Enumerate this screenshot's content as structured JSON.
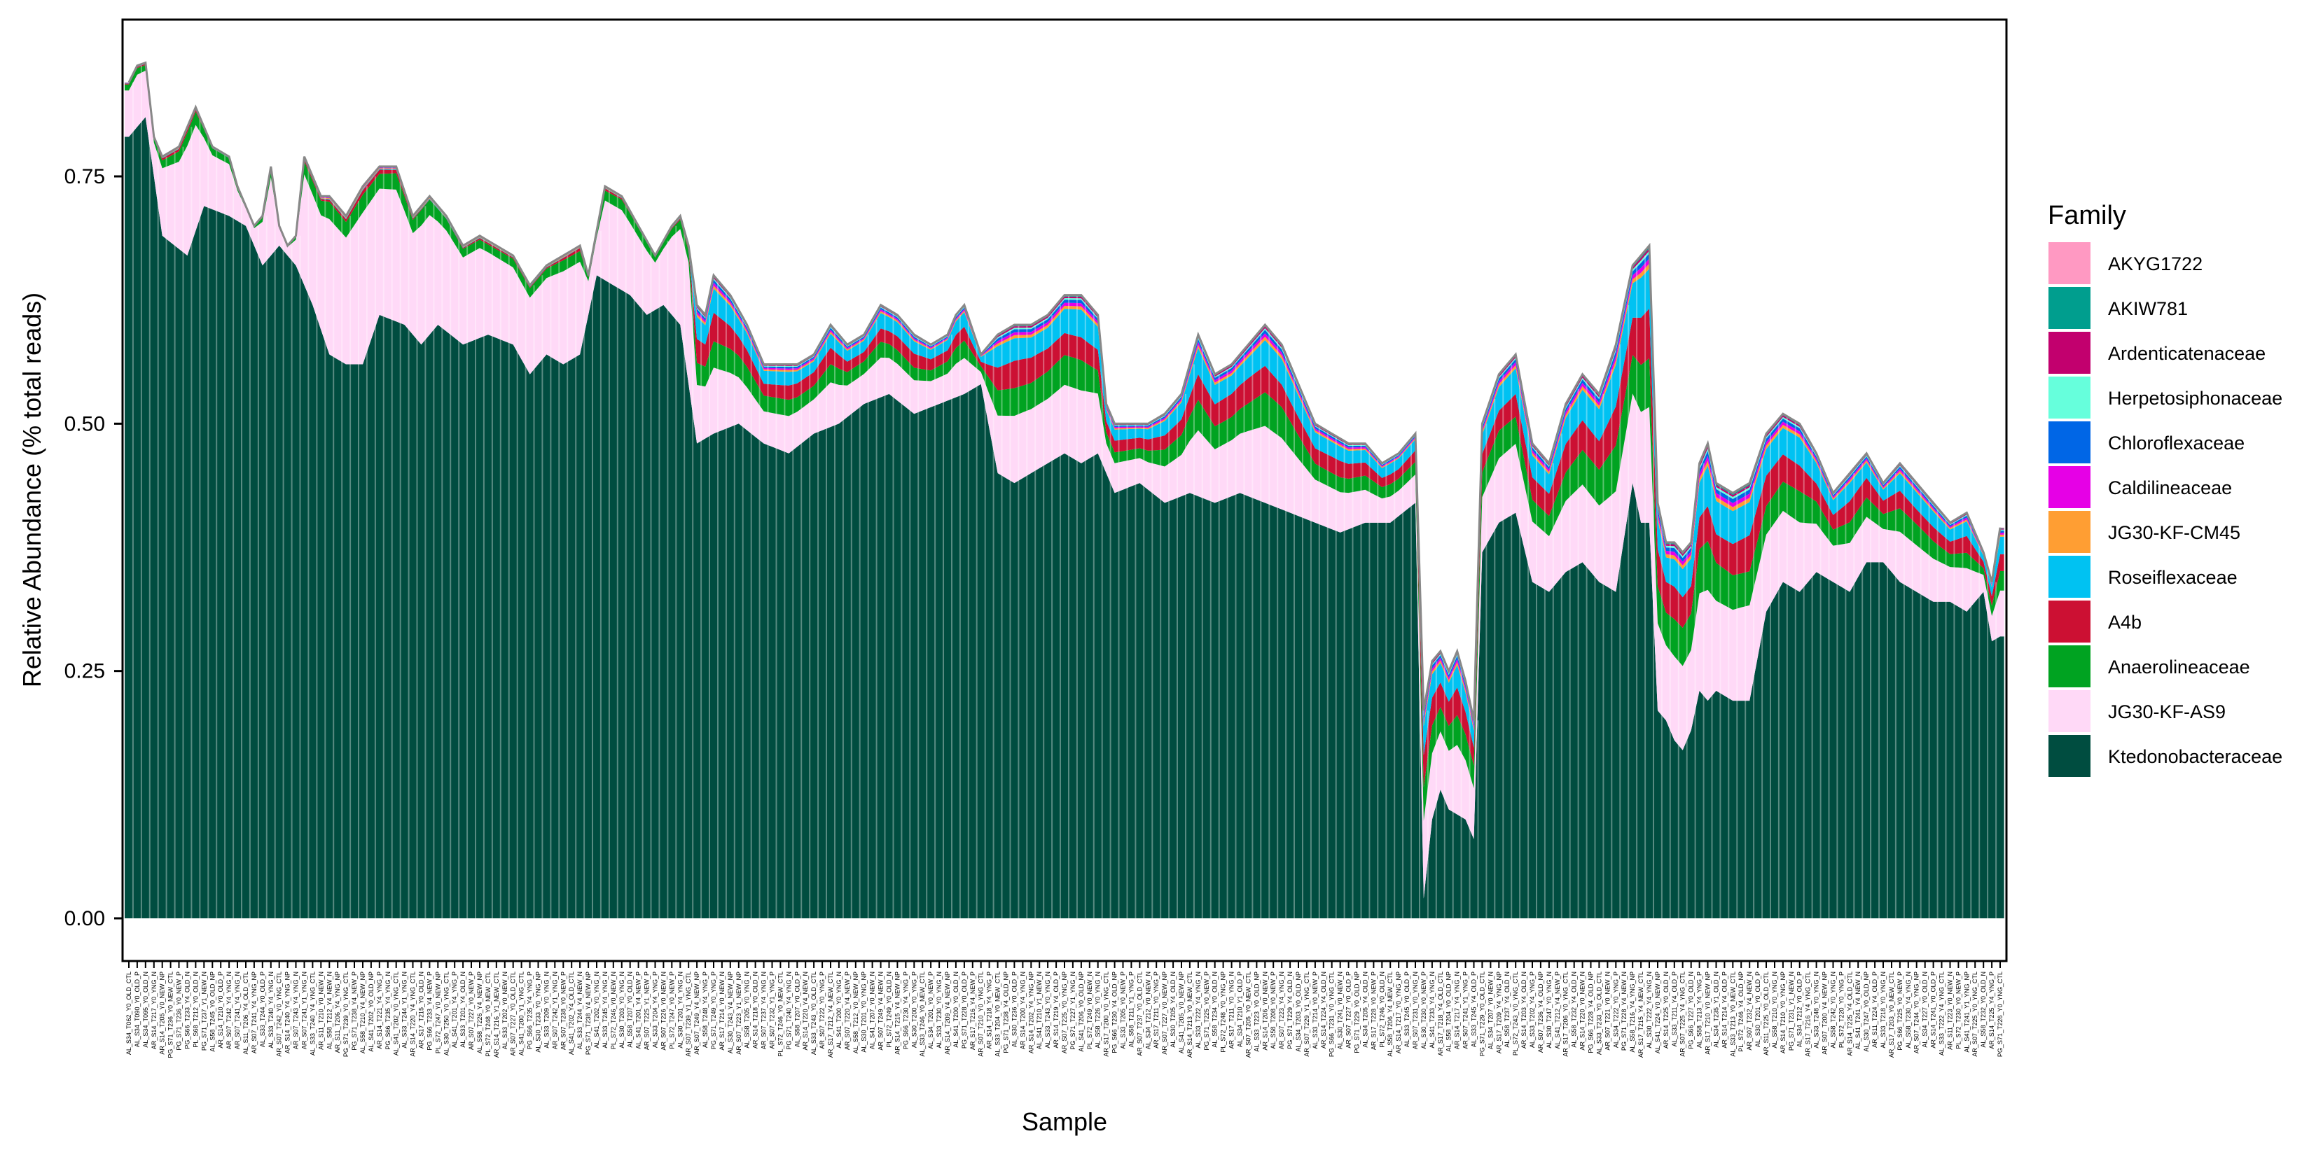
{
  "chart_data": {
    "type": "area",
    "xlabel": "Sample",
    "ylabel": "Relative Abundance (% total reads)",
    "ylim": [
      0,
      0.9
    ],
    "yticks": [
      0.0,
      0.25,
      0.5,
      0.75
    ],
    "ytick_labels": [
      "0.00",
      "0.25",
      "0.50",
      "0.75"
    ],
    "grid": false,
    "legend_title": "Family",
    "legend_position": "right",
    "series": [
      {
        "name": "AKYG1722",
        "color": "#FF99C2"
      },
      {
        "name": "AKIW781",
        "color": "#009E8E"
      },
      {
        "name": "Ardenticatenaceae",
        "color": "#C2006E"
      },
      {
        "name": "Herpetosiphonaceae",
        "color": "#66FFDC"
      },
      {
        "name": "Chloroflexaceae",
        "color": "#0066E6"
      },
      {
        "name": "Caldilineaceae",
        "color": "#E600E6"
      },
      {
        "name": "JG30-KF-CM45",
        "color": "#FF9E33"
      },
      {
        "name": "Roseiflexaceae",
        "color": "#00C2F2"
      },
      {
        "name": "A4b",
        "color": "#CC1033"
      },
      {
        "name": "Anaerolineaceae",
        "color": "#00A321"
      },
      {
        "name": "JG30-KF-AS9",
        "color": "#FFD9F7"
      },
      {
        "name": "Ktedonobacteraceae",
        "color": "#004D40"
      }
    ],
    "ktedonobacteraceae_profile": [
      [
        0,
        0.79
      ],
      [
        2,
        0.81
      ],
      [
        4,
        0.69
      ],
      [
        7,
        0.67
      ],
      [
        9,
        0.72
      ],
      [
        12,
        0.71
      ],
      [
        14,
        0.7
      ],
      [
        16,
        0.66
      ],
      [
        18,
        0.68
      ],
      [
        20,
        0.66
      ],
      [
        22,
        0.62
      ],
      [
        24,
        0.57
      ],
      [
        26,
        0.56
      ],
      [
        28,
        0.56
      ],
      [
        30,
        0.61
      ],
      [
        33,
        0.6
      ],
      [
        35,
        0.58
      ],
      [
        37,
        0.6
      ],
      [
        40,
        0.58
      ],
      [
        43,
        0.59
      ],
      [
        46,
        0.58
      ],
      [
        48,
        0.55
      ],
      [
        50,
        0.57
      ],
      [
        52,
        0.56
      ],
      [
        54,
        0.57
      ],
      [
        56,
        0.65
      ],
      [
        58,
        0.64
      ],
      [
        60,
        0.63
      ],
      [
        62,
        0.61
      ],
      [
        64,
        0.62
      ],
      [
        66,
        0.6
      ],
      [
        68,
        0.48
      ],
      [
        70,
        0.49
      ],
      [
        73,
        0.5
      ],
      [
        76,
        0.48
      ],
      [
        79,
        0.47
      ],
      [
        82,
        0.49
      ],
      [
        85,
        0.5
      ],
      [
        88,
        0.52
      ],
      [
        91,
        0.53
      ],
      [
        94,
        0.51
      ],
      [
        97,
        0.52
      ],
      [
        100,
        0.53
      ],
      [
        102,
        0.54
      ],
      [
        104,
        0.45
      ],
      [
        106,
        0.44
      ],
      [
        108,
        0.45
      ],
      [
        110,
        0.46
      ],
      [
        112,
        0.47
      ],
      [
        114,
        0.46
      ],
      [
        116,
        0.47
      ],
      [
        118,
        0.43
      ],
      [
        121,
        0.44
      ],
      [
        124,
        0.42
      ],
      [
        127,
        0.43
      ],
      [
        130,
        0.42
      ],
      [
        133,
        0.43
      ],
      [
        136,
        0.42
      ],
      [
        139,
        0.41
      ],
      [
        142,
        0.4
      ],
      [
        145,
        0.39
      ],
      [
        148,
        0.4
      ],
      [
        151,
        0.4
      ],
      [
        154,
        0.42
      ],
      [
        155,
        0.02
      ],
      [
        156,
        0.1
      ],
      [
        157,
        0.13
      ],
      [
        158,
        0.11
      ],
      [
        160,
        0.1
      ],
      [
        161,
        0.08
      ],
      [
        162,
        0.37
      ],
      [
        164,
        0.4
      ],
      [
        166,
        0.41
      ],
      [
        168,
        0.34
      ],
      [
        170,
        0.33
      ],
      [
        172,
        0.35
      ],
      [
        174,
        0.36
      ],
      [
        176,
        0.34
      ],
      [
        178,
        0.33
      ],
      [
        180,
        0.44
      ],
      [
        181,
        0.4
      ],
      [
        182,
        0.4
      ],
      [
        183,
        0.21
      ],
      [
        184,
        0.2
      ],
      [
        185,
        0.18
      ],
      [
        186,
        0.17
      ],
      [
        187,
        0.19
      ],
      [
        188,
        0.23
      ],
      [
        189,
        0.22
      ],
      [
        190,
        0.23
      ],
      [
        192,
        0.22
      ],
      [
        194,
        0.22
      ],
      [
        196,
        0.31
      ],
      [
        198,
        0.34
      ],
      [
        200,
        0.33
      ],
      [
        202,
        0.35
      ],
      [
        204,
        0.34
      ],
      [
        206,
        0.33
      ],
      [
        208,
        0.36
      ],
      [
        210,
        0.36
      ],
      [
        212,
        0.34
      ],
      [
        214,
        0.33
      ],
      [
        216,
        0.32
      ],
      [
        218,
        0.32
      ],
      [
        220,
        0.31
      ],
      [
        222,
        0.33
      ],
      [
        223,
        0.28
      ],
      [
        225,
        0.29
      ],
      [
        227,
        0.28
      ],
      [
        229,
        0.29
      ]
    ],
    "total_profile": [
      [
        0,
        0.845
      ],
      [
        1,
        0.862
      ],
      [
        2,
        0.865
      ],
      [
        3,
        0.79
      ],
      [
        4,
        0.77
      ],
      [
        6,
        0.78
      ],
      [
        7,
        0.8
      ],
      [
        8,
        0.82
      ],
      [
        10,
        0.78
      ],
      [
        12,
        0.77
      ],
      [
        13,
        0.74
      ],
      [
        14,
        0.72
      ],
      [
        15,
        0.7
      ],
      [
        16,
        0.71
      ],
      [
        17,
        0.76
      ],
      [
        18,
        0.7
      ],
      [
        19,
        0.68
      ],
      [
        20,
        0.69
      ],
      [
        21,
        0.77
      ],
      [
        23,
        0.73
      ],
      [
        24,
        0.73
      ],
      [
        26,
        0.71
      ],
      [
        28,
        0.74
      ],
      [
        30,
        0.76
      ],
      [
        32,
        0.76
      ],
      [
        34,
        0.71
      ],
      [
        36,
        0.73
      ],
      [
        38,
        0.71
      ],
      [
        40,
        0.68
      ],
      [
        42,
        0.69
      ],
      [
        44,
        0.68
      ],
      [
        46,
        0.67
      ],
      [
        48,
        0.64
      ],
      [
        50,
        0.66
      ],
      [
        52,
        0.67
      ],
      [
        54,
        0.68
      ],
      [
        55,
        0.65
      ],
      [
        57,
        0.74
      ],
      [
        59,
        0.73
      ],
      [
        61,
        0.7
      ],
      [
        63,
        0.67
      ],
      [
        65,
        0.7
      ],
      [
        66,
        0.71
      ],
      [
        67,
        0.68
      ],
      [
        68,
        0.62
      ],
      [
        69,
        0.61
      ],
      [
        70,
        0.65
      ],
      [
        72,
        0.63
      ],
      [
        74,
        0.6
      ],
      [
        76,
        0.56
      ],
      [
        78,
        0.56
      ],
      [
        80,
        0.56
      ],
      [
        82,
        0.57
      ],
      [
        84,
        0.6
      ],
      [
        86,
        0.58
      ],
      [
        88,
        0.59
      ],
      [
        90,
        0.62
      ],
      [
        92,
        0.61
      ],
      [
        94,
        0.59
      ],
      [
        96,
        0.58
      ],
      [
        98,
        0.59
      ],
      [
        99,
        0.61
      ],
      [
        100,
        0.62
      ],
      [
        102,
        0.57
      ],
      [
        104,
        0.59
      ],
      [
        106,
        0.6
      ],
      [
        108,
        0.6
      ],
      [
        110,
        0.61
      ],
      [
        112,
        0.63
      ],
      [
        114,
        0.63
      ],
      [
        115,
        0.62
      ],
      [
        116,
        0.61
      ],
      [
        117,
        0.52
      ],
      [
        118,
        0.5
      ],
      [
        120,
        0.5
      ],
      [
        122,
        0.5
      ],
      [
        124,
        0.51
      ],
      [
        126,
        0.53
      ],
      [
        128,
        0.59
      ],
      [
        130,
        0.55
      ],
      [
        132,
        0.56
      ],
      [
        134,
        0.58
      ],
      [
        136,
        0.6
      ],
      [
        138,
        0.58
      ],
      [
        140,
        0.54
      ],
      [
        142,
        0.5
      ],
      [
        144,
        0.49
      ],
      [
        146,
        0.48
      ],
      [
        148,
        0.48
      ],
      [
        150,
        0.46
      ],
      [
        152,
        0.47
      ],
      [
        154,
        0.49
      ],
      [
        155,
        0.21
      ],
      [
        156,
        0.26
      ],
      [
        157,
        0.27
      ],
      [
        158,
        0.25
      ],
      [
        159,
        0.27
      ],
      [
        160,
        0.24
      ],
      [
        161,
        0.2
      ],
      [
        162,
        0.5
      ],
      [
        164,
        0.55
      ],
      [
        166,
        0.57
      ],
      [
        168,
        0.48
      ],
      [
        170,
        0.46
      ],
      [
        172,
        0.52
      ],
      [
        174,
        0.55
      ],
      [
        176,
        0.53
      ],
      [
        178,
        0.58
      ],
      [
        180,
        0.66
      ],
      [
        181,
        0.67
      ],
      [
        182,
        0.68
      ],
      [
        183,
        0.42
      ],
      [
        184,
        0.38
      ],
      [
        185,
        0.38
      ],
      [
        186,
        0.37
      ],
      [
        187,
        0.38
      ],
      [
        188,
        0.46
      ],
      [
        189,
        0.48
      ],
      [
        190,
        0.44
      ],
      [
        192,
        0.43
      ],
      [
        194,
        0.44
      ],
      [
        196,
        0.49
      ],
      [
        198,
        0.51
      ],
      [
        200,
        0.5
      ],
      [
        202,
        0.47
      ],
      [
        204,
        0.43
      ],
      [
        206,
        0.45
      ],
      [
        208,
        0.47
      ],
      [
        210,
        0.44
      ],
      [
        212,
        0.46
      ],
      [
        214,
        0.44
      ],
      [
        216,
        0.42
      ],
      [
        218,
        0.4
      ],
      [
        220,
        0.41
      ],
      [
        222,
        0.37
      ],
      [
        223,
        0.34
      ],
      [
        225,
        0.45
      ],
      [
        227,
        0.43
      ],
      [
        229,
        0.42
      ]
    ],
    "sample_labels": [
      "AL_S34_T062_Y0_OLD_CTL",
      "AL_S34_T090_Y0_OLD_P",
      "AL_S34_T095_Y0_OLD_N",
      "AR_S14_T217_Y0_YNG_N",
      "AR_S14_T205_Y0_NEW_NP",
      "PG_S71_T236_Y0_NEW_CTL",
      "PG_S71_T236_Y0_NEW_P",
      "PG_S66_T233_Y4_OLD_N",
      "PL_S68_T212_Y0_OLD_N",
      "PG_S71_T237_Y1_NEW_N",
      "AL_S58_T245_Y0_OLD_NP",
      "AR_S14_T210_Y0_OLD_P",
      "AR_S07_T242_Y4_YNG_N",
      "AR_S07_T241_Y4_YNG_N",
      "AL_S11_T206_Y4_OLD_CTL",
      "AR_S07_T241_Y4_YNG_NP",
      "AL_S33_T244_Y0_OLD_P",
      "AL_S33_T240_Y4_YNG_N",
      "AR_S07_T242_Y0_YNG_CTL",
      "AR_S14_T240_Y4_YNG_NP",
      "AR_S07_T243_Y4_YNG_N",
      "AR_S07_T241_Y1_YNG_N",
      "AL_S33_T240_Y4_YNG_CTL",
      "AR_S11_T210_Y0_NEW_N",
      "AL_S58_T212_Y4_NEW_N",
      "AR_S11_T206_Y4_YNG_NP",
      "PG_S71_T239_Y0_YNG_CTL",
      "PG_S71_T238_Y4_NEW_P",
      "AL_S58_T210_Y4_NEW_NP",
      "AL_S41_T202_Y0_OLD_NP",
      "AR_S14_T221_Y4_YNG_P",
      "PG_S66_T235_Y4_YNG_N",
      "AL_S41_T202_Y0_YNG_CTL",
      "AL_S33_T244_Y1_YNG_N",
      "AR_S14_T220_Y4_YNG_CTL",
      "AR_S17_T215_Y0_OLD_N",
      "PG_S66_T233_Y4_NEW_P",
      "PL_S72_T247_Y0_NEW_NP",
      "AL_S30_T250_Y0_YNG_CTL",
      "AL_S41_T201_Y4_YNG_P",
      "AL_S33_T201_Y4_OLD_N",
      "AR_S07_T227_Y0_NEW_P",
      "AL_S58_T226_Y4_NEW_NP",
      "PL_S72_T248_Y0_NEW_CTL",
      "AR_S14_T216_Y1_NEW_CTL",
      "AL_S33_T202_Y0_NEW_N",
      "AR_S07_T227_Y0_OLD_CTL",
      "AL_S41_T200_Y1_YNG_CTL",
      "PG_S66_T235_Y4_YNG_P",
      "AL_S30_T233_Y0_YNG_NP",
      "AL_S33_T209_Y0_YNG_N",
      "AR_S07_T242_Y1_YNG_N",
      "AR_S07_T238_Y0_NEW_P",
      "AL_S41_T202_Y4_OLD_CTL",
      "AL_S33_T244_Y4_NEW_N",
      "PG_S71_T238_Y4_NEW_NP",
      "AL_S41_T202_Y0_YNG_N",
      "AL_S33_T245_Y4_YNG_N",
      "PL_S72_T246_Y0_NEW_N",
      "AL_S30_T203_Y0_YNG_N",
      "AL_S58_T207_Y0_OLD_N",
      "AL_S41_T201_Y4_NEW_P",
      "AR_S07_T225_Y1_NEW_P",
      "AL_S33_T204_Y4_YNG_P",
      "AR_S07_T226_Y0_NEW_N",
      "PL_S72_T247_Y0_NEW_P",
      "AL_S30_T201_Y4_YNG_N",
      "AR_S07_T239_Y1_YNG_CTL",
      "AR_S07_T249_Y4_NEW_NP",
      "AL_S58_T248_Y4_YNG_P",
      "PG_S71_T249_Y0_YNG_P",
      "AR_S17_T214_Y0_NEW_N",
      "AL_S30_T243_Y4_NEW_NP",
      "AR_S07_T223_Y1_NEW_NP",
      "AL_S58_T205_Y0_YNG_N",
      "AR_S14_T218_Y0_OLD_N",
      "AR_S07_T237_Y4_YNG_N",
      "AR_S07_T232_Y1_YNG_P",
      "PL_S72_T246_Y0_NEW_CTL",
      "PG_S71_T240_Y4_YNG_N",
      "AL_S58_T207_Y0_OLD_P",
      "AR_S14_T220_Y4_NEW_N",
      "AL_S33_T243_Y0_OLD_CTL",
      "AR_S07_T222_Y0_YNG_P",
      "AR_S17_T212_Y4_NEW_CTL",
      "AL_S41_T200_Y0_YNG_N",
      "AR_S07_T220_Y4_NEW_P",
      "AL_S58_T212_Y0_NEW_NP",
      "AL_S30_T201_Y0_YNG_NP",
      "AL_S41_T207_Y0_NEW_N",
      "AR_S07_T249_Y4_NEW_N",
      "PL_S72_T249_Y0_OLD_N",
      "AR_S14_T215_Y4_NEW_NP",
      "PG_S66_T230_Y4_YNG_P",
      "AL_S30_T200_Y0_YNG_P",
      "AL_S33_T246_Y0_NEW_CTL",
      "AL_S34_T201_Y0_NEW_P",
      "AL_S33_T230_Y0_YNG_N",
      "AR_S14_T209_Y4_NEW_NP",
      "AL_S41_T200_Y0_OLD_N",
      "PG_S71_T228_Y0_OLD_P",
      "AR_S17_T216_Y4_NEW_P",
      "AR_S07_T210_Y0_YNG_CTL",
      "AR_S14_T218_Y4_YNG_P",
      "AL_S33_T204_Y0_NEW_CTL",
      "PG_S71_T238_Y4_OLD_NP",
      "AL_S30_T236_Y0_OLD_P",
      "AR_S14_T200_Y4_YNG_N",
      "AR_S14_T202_Y4_YNG_NP",
      "AL_S41_T210_Y1_NEW_N",
      "AL_S33_T243_Y0_YNG_N",
      "AR_S14_T219_Y4_OLD_P",
      "AR_S07_T225_Y0_YNG_NP",
      "PG_S71_T227_Y1_YNG_N",
      "AL_S41_T206_Y0_OLD_NP",
      "PL_S72_T249_Y0_NEW_N",
      "AL_S58_T226_Y0_YNG_N",
      "AR_S17_T200_Y0_YNG_CTL",
      "PG_S66_T230_Y4_OLD_NP",
      "AL_S33_T205_Y0_NEW_P",
      "AL_S58_T211_Y1_YNG_P",
      "AR_S07_T237_Y0_OLD_CTL",
      "AL_S34_T212_Y0_NEW_N",
      "AR_S17_T211_Y0_YNG_P",
      "AR_S07_T227_Y0_NEW_NP",
      "AL_S30_T205_Y4_OLD_N",
      "AL_S41_T205_Y0_NEW_NP",
      "AR_S14_T213_Y0_NEW_CTL",
      "AL_S33_T222_Y4_YNG_N",
      "PG_S71_T225_Y0_NEW_P",
      "AL_S58_T234_Y0_OLD_N",
      "PL_S72_T248_Y0_YNG_NP",
      "AR_S17_T211_Y0_YNG_N",
      "AL_S34_T210_Y1_OLD_P",
      "AR_S07_T205_Y0_NEW_CTL",
      "AL_S33_T223_Y0_OLD_NP",
      "AR_S14_T206_Y0_NEW_N",
      "AL_S58_T208_Y0_NEW_P",
      "AR_S07_T223_Y4_YNG_N",
      "PG_S71_T229_Y4_OLD_N",
      "AL_S34_T203_Y0_OLD_NP",
      "AR_S07_T229_Y1_YNG_CTL",
      "AL_S33_T214_Y0_NEW_P",
      "AR_S14_T224_Y4_OLD_N",
      "PG_S66_T231_Y0_YNG_CTL",
      "AL_S30_T241_Y0_NEW_N",
      "AR_S07_T227_Y0_OLD_P",
      "PG_S71_T229_Y0_OLD_NP",
      "AL_S34_T205_Y4_OLD_N",
      "AR_S17_T228_Y0_NEW_P",
      "PL_S72_T246_Y0_OLD_N",
      "AL_S58_T206_Y4_NEW_CTL",
      "AR_S14_T217_Y0_YNG_NP",
      "AL_S33_T245_Y0_OLD_P",
      "AR_S07_T231_Y0_YNG_N",
      "AL_S30_T230_Y0_NEW_P",
      "AL_S41_T233_Y4_YNG_N",
      "AR_S17_T218_Y4_OLD_CTL",
      "AL_S58_T204_Y0_OLD_NP",
      "AR_S14_T217_Y4_YNG_N",
      "AR_S07_T241_Y1_YNG_P",
      "AL_S33_T245_Y4_OLD_P",
      "PG_S71_T229_Y0_OLD_CTL",
      "AL_S34_T207_Y0_NEW_N",
      "AR_S17_T209_Y4_YNG_NP",
      "AL_S58_T237_Y4_OLD_N",
      "PL_S72_T243_Y0_YNG_CTL",
      "AR_S14_T203_Y4_OLD_N",
      "AL_S33_T202_Y4_YNG_P",
      "AR_S07_T236_Y4_OLD_NP",
      "AL_S30_T247_Y0_YNG_N",
      "AL_S41_T212_Y4_NEW_P",
      "AR_S17_T206_Y0_YNG_CTL",
      "AL_S58_T232_Y4_OLD_N",
      "AR_S14_T220_Y0_NEW_N",
      "PG_S66_T228_Y4_OLD_NP",
      "AL_S33_T233_Y0_OLD_CTL",
      "AR_S07_T221_Y0_NEW_N",
      "AL_S34_T222_Y0_YNG_P",
      "PG_S71_T228_Y4_NEW_N",
      "AL_S58_T216_Y4_YNG_NP",
      "AR_S17_T215_Y4_NEW_CTL",
      "AL_S30_T222_Y4_YNG_N",
      "AL_S41_T224_Y0_NEW_NP",
      "AR_S14_T225_Y0_OLD_N",
      "AL_S33_T211_Y4_OLD_P",
      "AR_S07_T225_Y4_YNG_CTL",
      "PG_S66_T227_Y0_OLD_N",
      "AL_S58_T213_Y4_YNG_P",
      "AR_S17_T210_Y0_NEW_NP",
      "AL_S34_T235_Y1_OLD_N",
      "AR_S14_T214_Y4_OLD_P",
      "AL_S33_T213_Y0_NEW_CTL",
      "PL_S72_T246_Y4_OLD_NP",
      "AR_S07_T232_Y4_NEW_N",
      "AL_S30_T201_Y0_OLD_P",
      "AR_S11_T225_Y0_OLD_CTL",
      "AL_S58_T210_Y0_YNG_N",
      "AR_S14_T210_Y0_YNG_NP",
      "PG_S71_T231_Y1_NEW_N",
      "AL_S34_T212_Y0_OLD_P",
      "AR_S17_T216_Y4_YNG_CTL",
      "AL_S33_T248_Y0_YNG_N",
      "AR_S07_T200_Y4_NEW_NP",
      "AL_S58_T242_Y0_YNG_N",
      "PL_S72_T220_Y0_YNG_P",
      "AR_S14_T225_Y4_OLD_CTL",
      "AL_S41_T241_Y4_NEW_N",
      "AL_S30_T247_Y0_OLD_NP",
      "AR_S11_T224_Y4_OLD_P",
      "AL_S33_T218_Y0_YNG_N",
      "AR_S17_T203_Y0_NEW_CTL",
      "PG_S66_T225_Y0_NEW_P",
      "AL_S58_T230_Y4_YNG_N",
      "AR_S07_T244_Y0_YNG_NP",
      "AL_S34_T227_Y0_OLD_N",
      "AR_S14_T241_Y0_OLD_P",
      "AL_S33_T222_Y4_YNG_CTL",
      "AR_S11_T223_Y0_NEW_N",
      "PL_S72_T230_Y0_NEW_P",
      "AL_S41_T241_Y1_YNG_NP",
      "AR_S07_T225_Y0_YNG_CTL",
      "AL_S58_T232_Y0_OLD_N",
      "AR_S14_T225_Y4_YNG_P",
      "PG_S71_T226_Y0_YNG_CTL"
    ]
  }
}
